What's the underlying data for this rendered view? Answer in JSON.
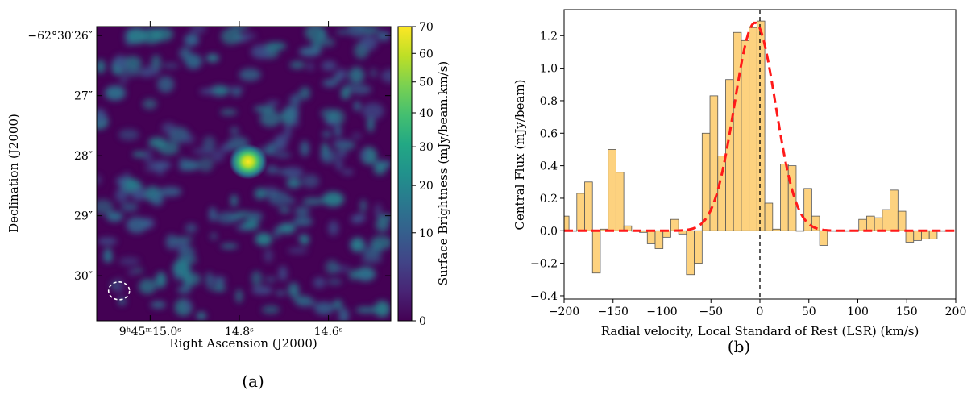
{
  "chart_data": [
    {
      "type": "heatmap",
      "panel_label": "(a)",
      "xlabel": "Right Ascension (J2000)",
      "ylabel": "Declination (J2000)",
      "x_ticks": [
        {
          "label": "9ʰ45ᵐ15.0ˢ",
          "ra_s": 15.0
        },
        {
          "label": "14.8ˢ",
          "ra_s": 14.8
        },
        {
          "label": "14.6ˢ",
          "ra_s": 14.6
        }
      ],
      "y_ticks": [
        {
          "label": "−62°30′26″",
          "dec_arcsec": 26
        },
        {
          "label": "27″",
          "dec_arcsec": 27
        },
        {
          "label": "28″",
          "dec_arcsec": 28
        },
        {
          "label": "29″",
          "dec_arcsec": 29
        },
        {
          "label": "30″",
          "dec_arcsec": 30
        }
      ],
      "xlim_ra_s": [
        15.12,
        14.46
      ],
      "ylim_dec_arcsec": [
        30.75,
        25.85
      ],
      "colormap": "viridis",
      "colorbar": {
        "label": "Surface Brightness (mJy/beam.km/s)",
        "range": [
          0,
          70
        ],
        "ticks": [
          {
            "label": "0",
            "value": 0
          },
          {
            "label": "10",
            "value": 10
          },
          {
            "label": "20",
            "value": 20
          },
          {
            "label": "30",
            "value": 30
          },
          {
            "label": "40",
            "value": 40
          },
          {
            "label": "50",
            "value": 50
          },
          {
            "label": "60",
            "value": 60
          },
          {
            "label": "70",
            "value": 70
          }
        ]
      },
      "peak": {
        "ra_s": 14.78,
        "dec_arcsec": 28.1,
        "value": 70
      },
      "beam": {
        "ra_s": 15.07,
        "dec_arcsec": 30.25,
        "style": "dashed white ellipse"
      }
    },
    {
      "type": "bar",
      "panel_label": "(b)",
      "xlabel": "Radial velocity, Local Standard of Rest (LSR) (km/s)",
      "ylabel": "Central Flux (mJy/beam)",
      "xlim": [
        -200,
        200
      ],
      "ylim": [
        -0.42,
        1.36
      ],
      "x_ticks": [
        -200,
        -150,
        -100,
        -50,
        0,
        50,
        100,
        150,
        200
      ],
      "y_ticks": [
        -0.4,
        -0.2,
        0.0,
        0.2,
        0.4,
        0.6,
        0.8,
        1.0,
        1.2
      ],
      "x_tick_labels": [
        "−200",
        "−150",
        "−100",
        "−50",
        "0",
        "50",
        "100",
        "150",
        "200"
      ],
      "y_tick_labels": [
        "−0.4",
        "−0.2",
        "0.0",
        "0.2",
        "0.4",
        "0.6",
        "0.8",
        "1.0",
        "1.2"
      ],
      "bin_width_kms": 8,
      "bin_centers": [
        -199,
        -191,
        -183,
        -175,
        -167,
        -159,
        -151,
        -143,
        -135,
        -127,
        -119,
        -111,
        -103,
        -95,
        -87,
        -79,
        -71,
        -63,
        -55,
        -47,
        -39,
        -31,
        -23,
        -15,
        -7,
        1,
        9,
        17,
        25,
        33,
        41,
        49,
        57,
        65,
        73,
        81,
        89,
        97,
        105,
        113,
        121,
        129,
        137,
        145,
        153,
        161,
        169,
        177,
        185,
        193
      ],
      "values": [
        0.09,
        0.0,
        0.23,
        0.3,
        -0.26,
        0.01,
        0.5,
        0.36,
        0.03,
        0.0,
        -0.01,
        -0.08,
        -0.11,
        -0.04,
        0.07,
        -0.02,
        -0.27,
        -0.2,
        0.6,
        0.83,
        0.46,
        0.93,
        1.22,
        1.17,
        1.25,
        1.29,
        0.17,
        0.01,
        0.41,
        0.4,
        0.0,
        0.26,
        0.09,
        -0.09,
        0.0,
        0.0,
        0.0,
        0.0,
        0.07,
        0.09,
        0.08,
        0.13,
        0.25,
        0.12,
        -0.07,
        -0.06,
        -0.05,
        -0.05,
        0.0,
        0.0
      ],
      "bar_color": "#fdd27f",
      "fit": {
        "type": "gaussian",
        "amplitude": 1.28,
        "center": -5,
        "sigma": 21,
        "color": "#ff1a1a",
        "style": "dashed"
      },
      "reference_line": {
        "x": 0,
        "color": "#000000",
        "style": "dashed"
      }
    }
  ]
}
